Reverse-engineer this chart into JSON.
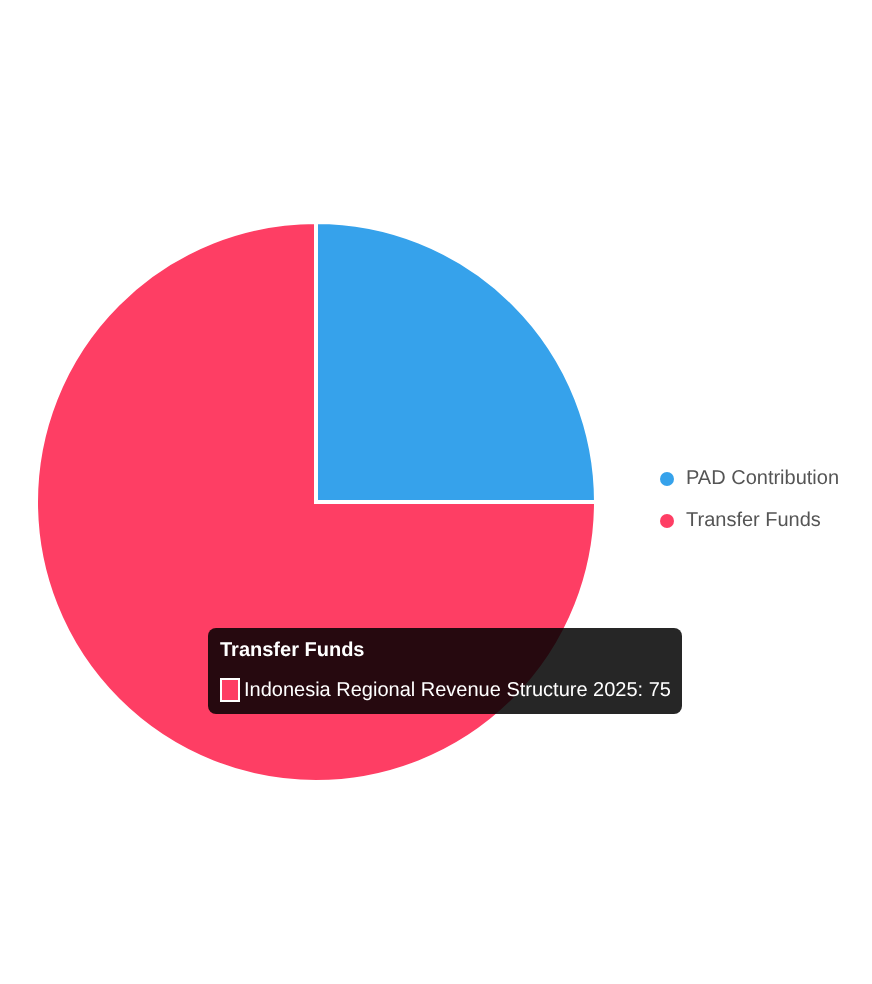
{
  "chart_data": {
    "type": "pie",
    "categories": [
      "PAD Contribution",
      "Transfer Funds"
    ],
    "values": [
      25,
      75
    ],
    "colors": [
      "#36a2eb",
      "#fe3e64"
    ],
    "legend": "right",
    "annotations": [
      "Transfer Funds",
      "Indonesia Regional Revenue Structure 2025: 75"
    ]
  }
}
